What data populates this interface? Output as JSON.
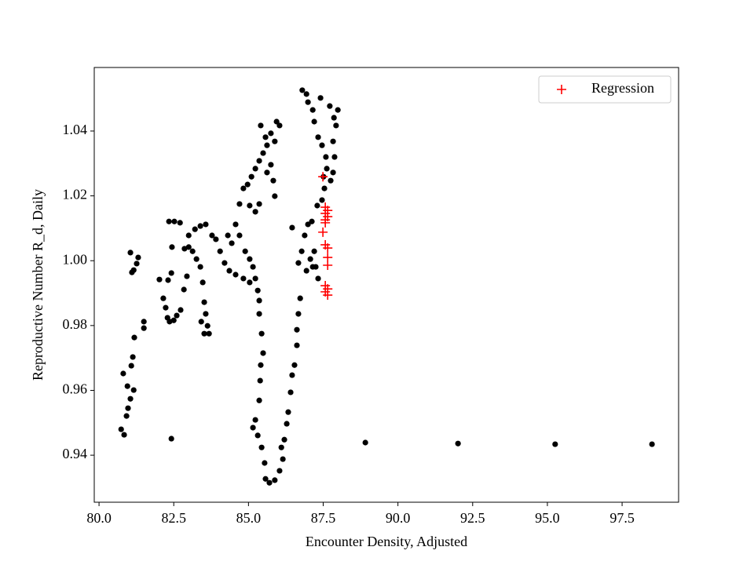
{
  "chart_data": {
    "type": "scatter",
    "x_label": "Encounter Density, Adjusted",
    "y_label": "Reproductive Number R_d, Daily",
    "xlim": [
      79.84,
      99.39
    ],
    "ylim": [
      0.9255,
      1.0596
    ],
    "xticks": [
      {
        "value": 80,
        "label": "80.0"
      },
      82.5,
      {
        "value": 85,
        "label": "85.0"
      },
      87.5,
      {
        "value": 90,
        "label": "90.0"
      },
      92.5,
      {
        "value": 95,
        "label": "95.0"
      },
      97.5
    ],
    "yticks": [
      0.94,
      0.96,
      0.98,
      {
        "value": 1,
        "label": "1.00"
      },
      1.02,
      1.04
    ],
    "legend": "upper right",
    "series": [
      {
        "color": "#000000",
        "marker": "circle",
        "x": [
          80.74,
          80.84,
          80.92,
          80.97,
          81.05,
          81.16,
          81.08,
          81.13,
          81.18,
          81.5,
          81.5,
          80.81,
          80.95,
          81.05,
          81.16,
          81.26,
          81.31,
          81.1,
          82.02,
          82.15,
          82.23,
          82.29,
          82.36,
          82.5,
          82.6,
          82.73,
          82.84,
          82.94,
          82.31,
          82.42,
          82.44,
          82.34,
          82.52,
          82.71,
          82.86,
          83,
          83.13,
          83.26,
          83.39,
          83.47,
          83.52,
          83.57,
          83.63,
          83.68,
          83.52,
          83.42,
          83,
          83.21,
          83.39,
          83.57,
          83.78,
          83.91,
          84.05,
          84.31,
          84.44,
          84.57,
          84.7,
          84.89,
          85.04,
          85.15,
          85.23,
          85.31,
          85.36,
          85.04,
          84.83,
          84.57,
          84.36,
          84.2,
          84.7,
          84.83,
          84.97,
          85.1,
          85.23,
          85.36,
          85.49,
          85.62,
          85.41,
          85.57,
          85.75,
          85.88,
          85.94,
          86.04,
          85.75,
          85.83,
          85.88,
          85.62,
          85.36,
          85.23,
          85.04,
          85.36,
          85.44,
          85.49,
          85.41,
          85.39,
          85.36,
          85.23,
          85.15,
          85.31,
          85.44,
          85.54,
          85.57,
          85.7,
          85.88,
          86.04,
          86.15,
          86.1,
          86.2,
          86.28,
          86.33,
          86.41,
          86.46,
          86.54,
          86.62,
          86.62,
          86.67,
          86.73,
          86.67,
          86.78,
          86.88,
          86.99,
          87.12,
          87.3,
          87.46,
          87.54,
          87.51,
          87.62,
          87.59,
          87.46,
          87.33,
          87.2,
          86.99,
          86.8,
          86.94,
          87.15,
          87.41,
          87.72,
          87.86,
          87.93,
          87.83,
          87.88,
          87.83,
          87.75,
          87.99,
          87.2,
          87.25,
          87.33,
          87.15,
          87.07,
          86.94,
          86.46,
          82.42,
          88.91,
          92.01,
          95.26,
          98.5
        ],
        "values": [
          0.948,
          0.9463,
          0.9521,
          0.9545,
          0.9574,
          0.9601,
          0.9676,
          0.9703,
          0.9763,
          0.9812,
          0.9792,
          0.9652,
          0.9613,
          1.0025,
          0.9971,
          0.9991,
          1.001,
          0.9964,
          0.9942,
          0.9884,
          0.9855,
          0.9824,
          0.9812,
          0.9816,
          0.9831,
          0.9848,
          0.9911,
          0.9952,
          0.994,
          0.9962,
          1.0042,
          1.0121,
          1.0121,
          1.0117,
          1.0037,
          1.0042,
          1.0029,
          1.0005,
          0.9981,
          0.9933,
          0.9872,
          0.9836,
          0.9799,
          0.9775,
          0.9775,
          0.9812,
          1.0078,
          1.0097,
          1.0107,
          1.0112,
          1.0078,
          1.0066,
          1.0029,
          1.0078,
          1.0054,
          1.0112,
          1.0078,
          1.0029,
          1.0005,
          0.9981,
          0.9945,
          0.9908,
          0.9877,
          0.9933,
          0.9945,
          0.9957,
          0.9969,
          0.9993,
          1.0175,
          1.0223,
          1.0235,
          1.0259,
          1.0284,
          1.0308,
          1.0332,
          1.0356,
          1.0417,
          1.0381,
          1.0393,
          1.0368,
          1.0429,
          1.0417,
          1.0296,
          1.0247,
          1.0199,
          1.0272,
          1.0175,
          1.0151,
          1.017,
          0.9836,
          0.9775,
          0.9715,
          0.9678,
          0.963,
          0.9569,
          0.9509,
          0.9485,
          0.9461,
          0.9424,
          0.9376,
          0.9327,
          0.9315,
          0.9323,
          0.9352,
          0.9388,
          0.9424,
          0.9448,
          0.9497,
          0.9533,
          0.9594,
          0.9647,
          0.9678,
          0.9739,
          0.9787,
          0.9836,
          0.9884,
          0.9993,
          1.0029,
          1.0078,
          1.0112,
          1.0121,
          1.017,
          1.0187,
          1.0223,
          1.0259,
          1.0284,
          1.032,
          1.0356,
          1.0381,
          1.0429,
          1.0489,
          1.0526,
          1.0514,
          1.0465,
          1.0502,
          1.0477,
          1.0441,
          1.0417,
          1.0368,
          1.032,
          1.0272,
          1.0247,
          1.0465,
          1.0029,
          0.9981,
          0.9945,
          0.9981,
          1.0005,
          0.9969,
          1.0102,
          0.9451,
          0.9439,
          0.9436,
          0.9434,
          0.9434
        ]
      },
      {
        "name": "Regression",
        "color": "#ff0000",
        "marker": "plus",
        "x": [
          87.49,
          87.57,
          87.65,
          87.57,
          87.65,
          87.57,
          87.57,
          87.49,
          87.57,
          87.65,
          87.65,
          87.65,
          87.57,
          87.65,
          87.57,
          87.65
        ],
        "values": [
          1.0259,
          1.0165,
          1.0155,
          1.0146,
          1.0136,
          1.0126,
          1.0117,
          1.0088,
          1.0049,
          1.0039,
          1.001,
          0.9986,
          0.9923,
          0.9913,
          0.9904,
          0.9894
        ]
      }
    ]
  }
}
